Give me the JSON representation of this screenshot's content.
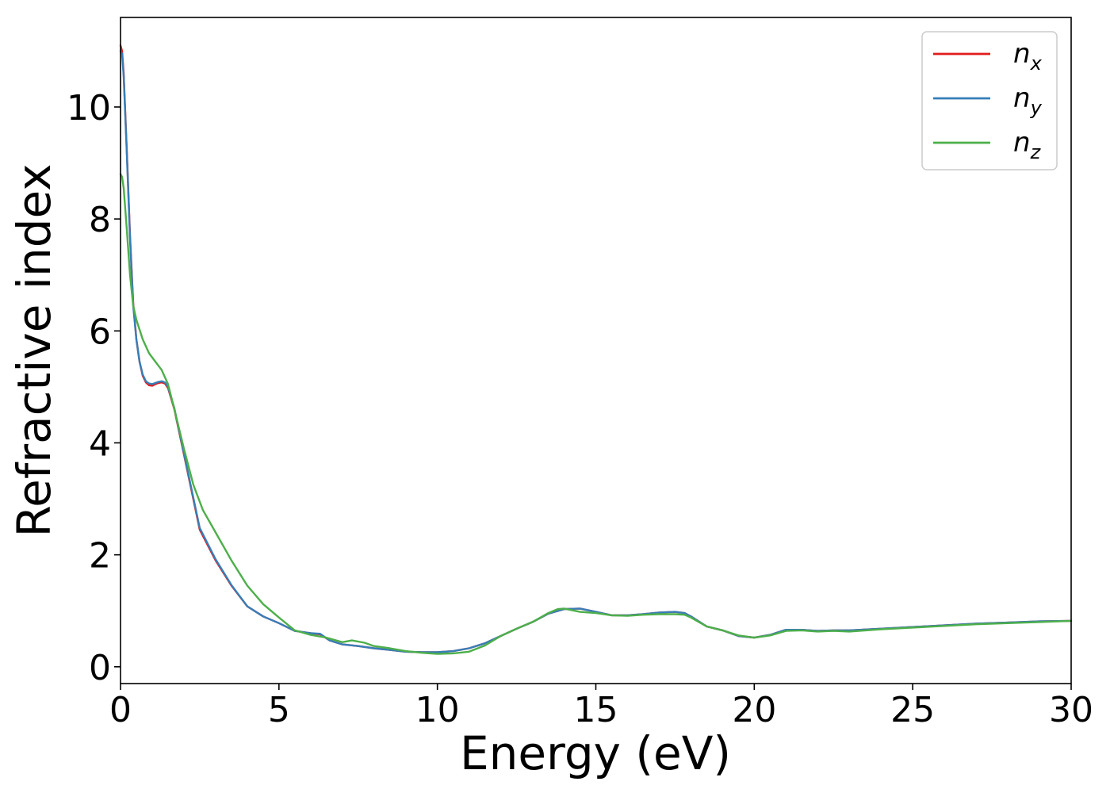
{
  "chart_data": {
    "type": "line",
    "xlabel": "Energy (eV)",
    "ylabel": "Refractive index",
    "xlim": [
      0,
      30
    ],
    "ylim": [
      -0.3,
      11.6
    ],
    "xticks": [
      "0",
      "5",
      "10",
      "15",
      "20",
      "25",
      "30"
    ],
    "yticks": [
      "0",
      "2",
      "4",
      "6",
      "8",
      "10"
    ],
    "grid": false,
    "legend_position": "top-right",
    "series": [
      {
        "name": "n",
        "subscript": "x",
        "color": "#e41a1c",
        "x": [
          0,
          0.05,
          0.1,
          0.2,
          0.3,
          0.4,
          0.5,
          0.6,
          0.7,
          0.8,
          0.9,
          1.0,
          1.1,
          1.2,
          1.3,
          1.4,
          1.5,
          1.7,
          2.0,
          2.5,
          3.0,
          3.5,
          4.0,
          4.5,
          5.0,
          5.5,
          6.0,
          6.3,
          6.6,
          7.0,
          7.5,
          8.0,
          8.5,
          9.0,
          9.5,
          10.0,
          10.5,
          11.0,
          11.5,
          12.0,
          12.5,
          13.0,
          13.5,
          14.0,
          14.5,
          15.0,
          15.5,
          16.0,
          16.5,
          17.0,
          17.5,
          17.8,
          18.0,
          18.5,
          19.0,
          19.5,
          20.0,
          20.5,
          21.0,
          21.5,
          22.0,
          22.5,
          23.0,
          24.0,
          25.0,
          26.0,
          27.0,
          28.0,
          29.0,
          30.0
        ],
        "y": [
          11.1,
          11.0,
          10.6,
          9.2,
          7.7,
          6.5,
          5.85,
          5.45,
          5.2,
          5.08,
          5.03,
          5.02,
          5.05,
          5.07,
          5.08,
          5.06,
          4.98,
          4.6,
          3.8,
          2.45,
          1.9,
          1.45,
          1.08,
          0.9,
          0.78,
          0.64,
          0.6,
          0.58,
          0.47,
          0.4,
          0.37,
          0.33,
          0.3,
          0.27,
          0.26,
          0.26,
          0.28,
          0.33,
          0.42,
          0.55,
          0.68,
          0.8,
          0.95,
          1.03,
          1.04,
          0.98,
          0.92,
          0.92,
          0.94,
          0.97,
          0.98,
          0.96,
          0.9,
          0.72,
          0.65,
          0.55,
          0.52,
          0.57,
          0.66,
          0.66,
          0.64,
          0.65,
          0.65,
          0.68,
          0.71,
          0.74,
          0.77,
          0.79,
          0.81,
          0.82
        ]
      },
      {
        "name": "n",
        "subscript": "y",
        "color": "#377eb8",
        "x": [
          0,
          0.05,
          0.1,
          0.2,
          0.3,
          0.4,
          0.5,
          0.6,
          0.7,
          0.8,
          0.9,
          1.0,
          1.1,
          1.2,
          1.3,
          1.4,
          1.5,
          1.7,
          2.0,
          2.5,
          3.0,
          3.5,
          4.0,
          4.5,
          5.0,
          5.5,
          6.0,
          6.3,
          6.6,
          7.0,
          7.5,
          8.0,
          8.5,
          9.0,
          9.5,
          10.0,
          10.5,
          11.0,
          11.5,
          12.0,
          12.5,
          13.0,
          13.5,
          14.0,
          14.5,
          15.0,
          15.5,
          16.0,
          16.5,
          17.0,
          17.5,
          17.8,
          18.0,
          18.5,
          19.0,
          19.5,
          20.0,
          20.5,
          21.0,
          21.5,
          22.0,
          22.5,
          23.0,
          24.0,
          25.0,
          26.0,
          27.0,
          28.0,
          29.0,
          30.0
        ],
        "y": [
          11.0,
          10.95,
          10.55,
          9.15,
          7.65,
          6.45,
          5.85,
          5.45,
          5.22,
          5.1,
          5.06,
          5.05,
          5.07,
          5.09,
          5.1,
          5.08,
          5.0,
          4.62,
          3.82,
          2.48,
          1.92,
          1.46,
          1.08,
          0.9,
          0.78,
          0.64,
          0.6,
          0.59,
          0.47,
          0.4,
          0.37,
          0.33,
          0.3,
          0.27,
          0.26,
          0.26,
          0.28,
          0.33,
          0.42,
          0.55,
          0.68,
          0.8,
          0.95,
          1.03,
          1.04,
          0.98,
          0.92,
          0.92,
          0.94,
          0.97,
          0.98,
          0.96,
          0.9,
          0.72,
          0.65,
          0.55,
          0.52,
          0.57,
          0.66,
          0.66,
          0.64,
          0.65,
          0.65,
          0.68,
          0.71,
          0.74,
          0.77,
          0.79,
          0.81,
          0.82
        ]
      },
      {
        "name": "n",
        "subscript": "z",
        "color": "#4daf4a",
        "x": [
          0,
          0.05,
          0.1,
          0.2,
          0.3,
          0.4,
          0.5,
          0.7,
          0.9,
          1.1,
          1.3,
          1.5,
          1.7,
          2.0,
          2.3,
          2.6,
          3.0,
          3.5,
          4.0,
          4.5,
          5.0,
          5.5,
          6.0,
          6.5,
          7.0,
          7.3,
          7.7,
          8.0,
          8.5,
          9.0,
          9.5,
          10.0,
          10.5,
          11.0,
          11.5,
          12.0,
          12.5,
          13.0,
          13.5,
          13.8,
          14.0,
          14.5,
          15.0,
          15.5,
          16.0,
          16.5,
          17.0,
          17.5,
          17.8,
          18.0,
          18.5,
          19.0,
          19.5,
          20.0,
          20.5,
          21.0,
          21.5,
          22.0,
          22.5,
          23.0,
          24.0,
          25.0,
          26.0,
          27.0,
          28.0,
          29.0,
          30.0
        ],
        "y": [
          8.8,
          8.75,
          8.55,
          7.8,
          7.0,
          6.45,
          6.2,
          5.85,
          5.6,
          5.45,
          5.3,
          5.05,
          4.6,
          3.9,
          3.25,
          2.8,
          2.4,
          1.9,
          1.45,
          1.12,
          0.88,
          0.65,
          0.57,
          0.52,
          0.44,
          0.47,
          0.43,
          0.37,
          0.33,
          0.28,
          0.25,
          0.23,
          0.24,
          0.27,
          0.38,
          0.55,
          0.68,
          0.8,
          0.96,
          1.03,
          1.04,
          0.98,
          0.96,
          0.92,
          0.91,
          0.93,
          0.94,
          0.94,
          0.93,
          0.88,
          0.72,
          0.65,
          0.56,
          0.52,
          0.56,
          0.64,
          0.65,
          0.63,
          0.64,
          0.63,
          0.67,
          0.7,
          0.73,
          0.76,
          0.78,
          0.8,
          0.82
        ]
      }
    ]
  }
}
